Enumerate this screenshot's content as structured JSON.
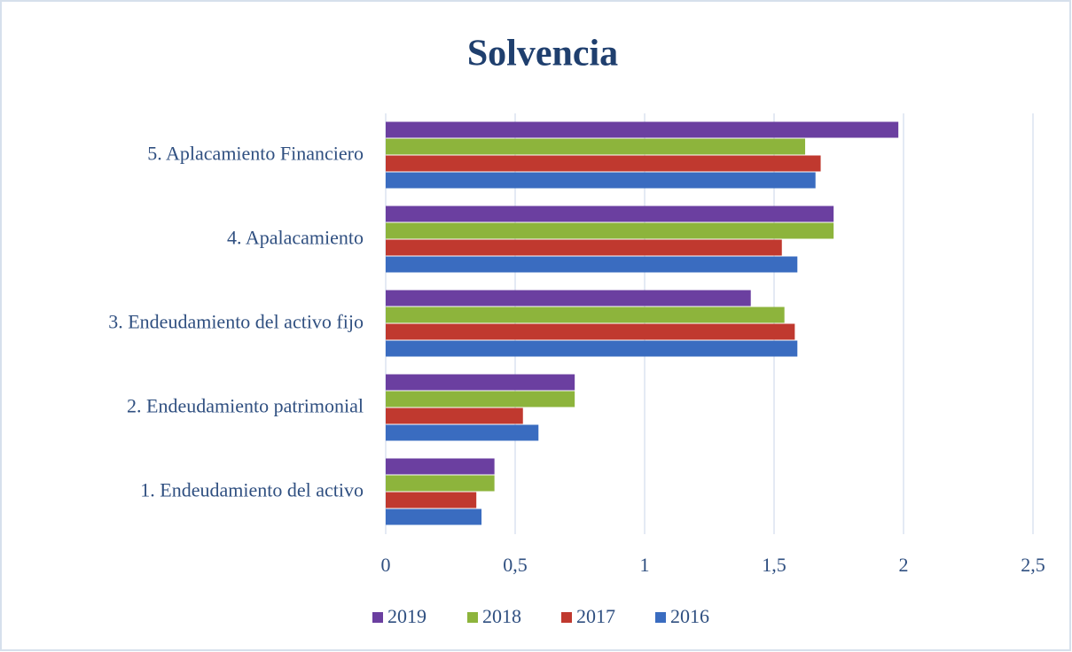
{
  "chart_data": {
    "type": "hbar",
    "title": "Solvencia",
    "categories": [
      "1. Endeudamiento del activo",
      "2. Endeudamiento patrimonial",
      "3. Endeudamiento del activo fijo",
      "4. Apalacamiento",
      "5. Aplacamiento Financiero"
    ],
    "series": [
      {
        "name": "2019",
        "color": "#6b3fa0",
        "values": [
          0.42,
          0.73,
          1.41,
          1.73,
          1.98
        ]
      },
      {
        "name": "2018",
        "color": "#8db43c",
        "values": [
          0.42,
          0.73,
          1.54,
          1.73,
          1.62
        ]
      },
      {
        "name": "2017",
        "color": "#c0392f",
        "values": [
          0.35,
          0.53,
          1.58,
          1.53,
          1.68
        ]
      },
      {
        "name": "2016",
        "color": "#3a6cc0",
        "values": [
          0.37,
          0.59,
          1.59,
          1.59,
          1.66
        ]
      }
    ],
    "xlim": [
      0,
      2.5
    ],
    "xticks": [
      0,
      {
        "value": 0.5,
        "label": "0,5"
      },
      1,
      {
        "value": 1.5,
        "label": "1,5"
      },
      2,
      {
        "value": 2.5,
        "label": "2,5"
      }
    ],
    "grid": true,
    "legend": "bottom"
  }
}
